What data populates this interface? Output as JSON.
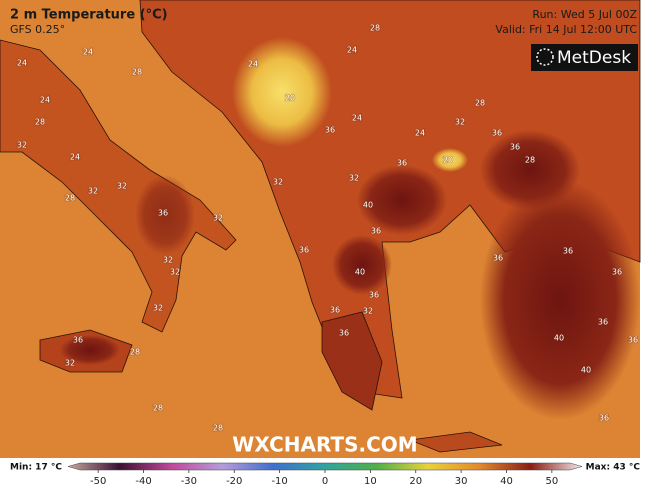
{
  "header": {
    "title": "2 m Temperature (°C)",
    "subtitle": "GFS 0.25°",
    "run": "Run: Wed 5 Jul 00Z",
    "valid": "Valid: Fri 14 Jul 12:00 UTC",
    "brand": "MetDesk"
  },
  "watermark": "WXCHARTS.COM",
  "colorbar": {
    "min_label": "Min: 17 °C",
    "max_label": "Max: 43 °C",
    "range": [
      -54,
      54
    ],
    "ticks": [
      -50,
      -40,
      -30,
      -20,
      -10,
      0,
      10,
      20,
      30,
      40,
      50
    ]
  },
  "contour_labels": [
    24,
    24,
    28,
    32,
    24,
    32,
    28,
    36,
    32,
    32,
    32,
    32,
    32,
    36,
    32,
    28,
    28,
    28,
    28,
    24,
    24,
    20,
    24,
    28,
    28,
    28,
    32,
    24,
    36,
    36,
    20,
    36,
    32,
    32,
    40,
    36,
    36,
    40,
    36,
    36,
    32,
    36,
    36,
    36,
    36,
    36,
    40,
    40,
    36,
    36,
    36,
    24
  ]
}
